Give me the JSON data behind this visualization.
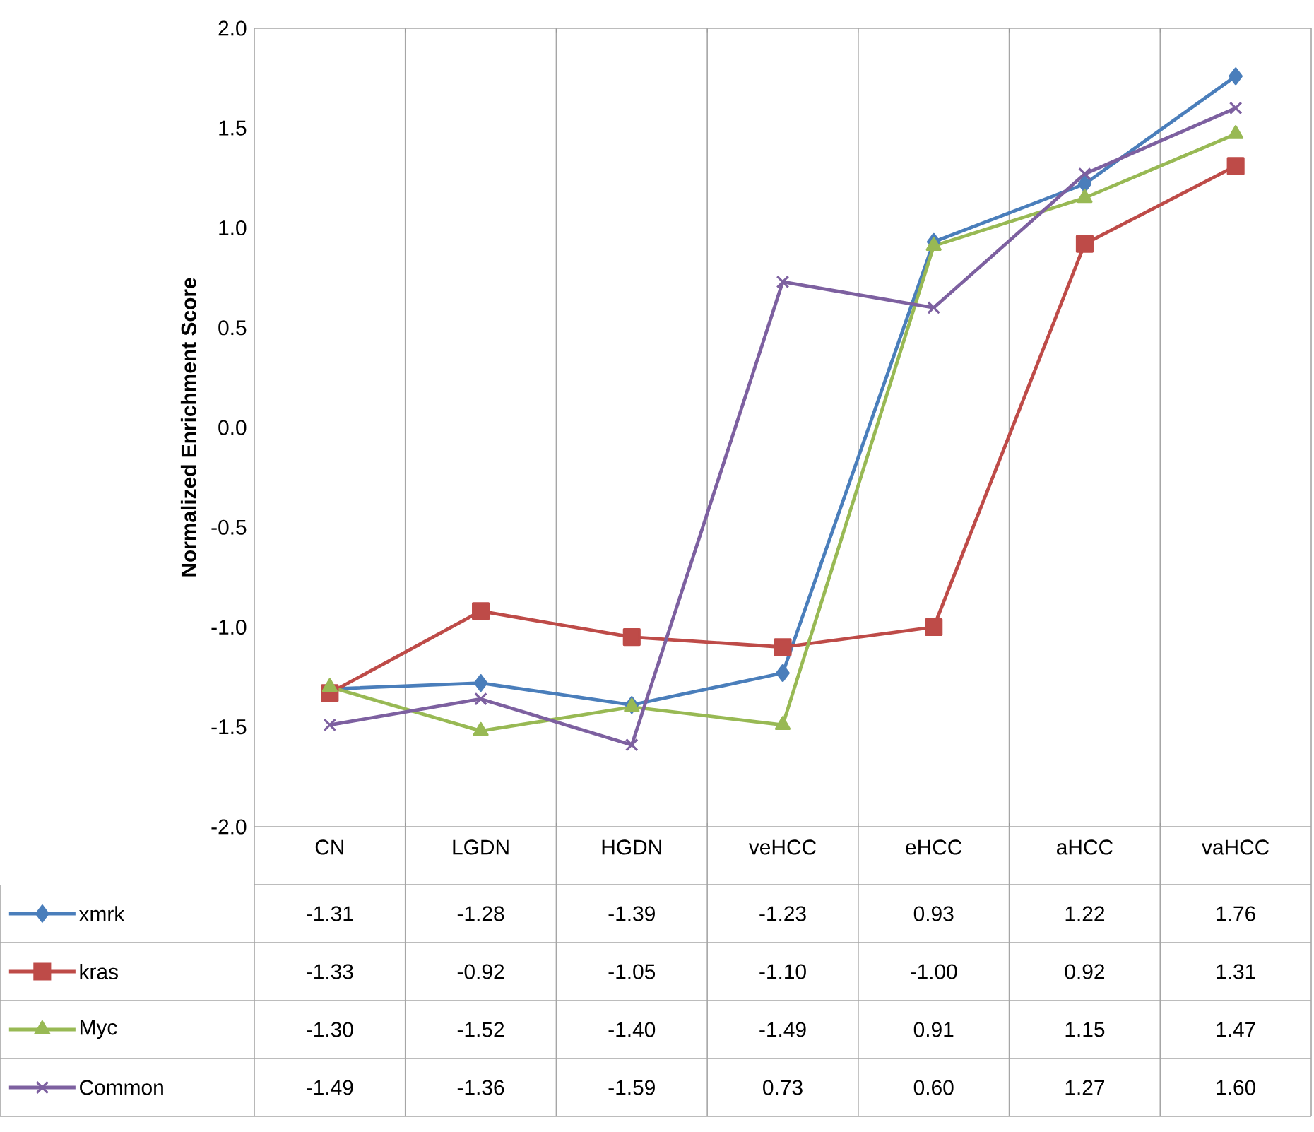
{
  "chart_data": {
    "type": "line",
    "ylabel": "Normalized Enrichment Score",
    "categories": [
      "CN",
      "LGDN",
      "HGDN",
      "veHCC",
      "eHCC",
      "aHCC",
      "vaHCC"
    ],
    "ylim": [
      -2,
      2
    ],
    "yticks": [
      {
        "value": -2,
        "label": "-2.0"
      },
      {
        "value": -1.5,
        "label": "-1.5"
      },
      {
        "value": -1,
        "label": "-1.0"
      },
      {
        "value": -0.5,
        "label": "-0.5"
      },
      {
        "value": 0,
        "label": "0.0"
      },
      {
        "value": 0.5,
        "label": "0.5"
      },
      {
        "value": 1,
        "label": "1.0"
      },
      {
        "value": 1.5,
        "label": "1.5"
      },
      {
        "value": 2,
        "label": "2.0"
      }
    ],
    "grid": "x",
    "legend": "bottom",
    "line_style": "solid",
    "series": [
      {
        "name": "xmrk",
        "color": "#4a7ebb",
        "marker": "diamond",
        "values": [
          -1.31,
          -1.28,
          -1.39,
          -1.23,
          0.93,
          1.22,
          1.76
        ],
        "value_labels": [
          "-1.31",
          "-1.28",
          "-1.39",
          "-1.23",
          "0.93",
          "1.22",
          "1.76"
        ]
      },
      {
        "name": "kras",
        "color": "#be4b48",
        "marker": "square",
        "values": [
          -1.33,
          -0.92,
          -1.05,
          -1.1,
          -1.0,
          0.92,
          1.31
        ],
        "value_labels": [
          "-1.33",
          "-0.92",
          "-1.05",
          "-1.10",
          "-1.00",
          "0.92",
          "1.31"
        ]
      },
      {
        "name": "Myc",
        "color": "#98b954",
        "marker": "triangle",
        "values": [
          -1.3,
          -1.52,
          -1.4,
          -1.49,
          0.91,
          1.15,
          1.47
        ],
        "value_labels": [
          "-1.30",
          "-1.52",
          "-1.40",
          "-1.49",
          "0.91",
          "1.15",
          "1.47"
        ]
      },
      {
        "name": "Common",
        "color": "#7d60a0",
        "marker": "cross",
        "values": [
          -1.49,
          -1.36,
          -1.59,
          0.73,
          0.6,
          1.27,
          1.6
        ],
        "value_labels": [
          "-1.49",
          "-1.36",
          "-1.59",
          "0.73",
          "0.60",
          "1.27",
          "1.60"
        ]
      }
    ]
  }
}
